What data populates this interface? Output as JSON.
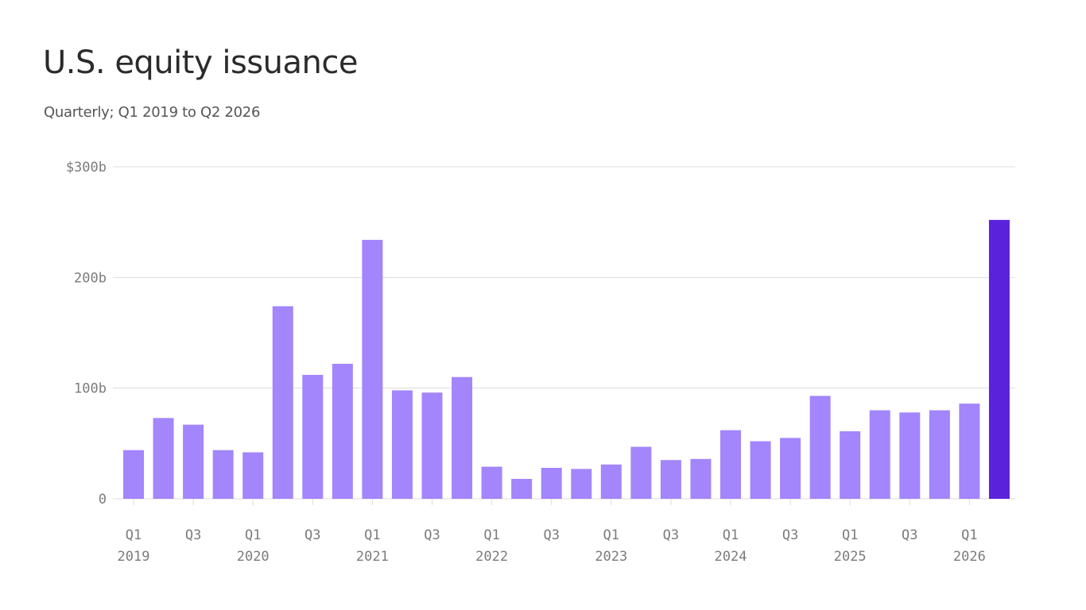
{
  "title": "U.S. equity issuance",
  "subtitle": "Quarterly; Q1 2019 to Q2 2026",
  "colors": {
    "bar": "#a385fc",
    "highlight": "#5a22db",
    "grid": "#dcdcdc",
    "axis_text": "#7b7b7b",
    "title": "#2b2b2b",
    "subtitle": "#555555"
  },
  "chart_data": {
    "type": "bar",
    "title": "U.S. equity issuance",
    "subtitle": "Quarterly; Q1 2019 to Q2 2026",
    "xlabel": "",
    "ylabel": "",
    "unit": "billions of dollars",
    "ylim": [
      0,
      300
    ],
    "y_ticks": [
      {
        "value": 0,
        "label": "0"
      },
      {
        "value": 100,
        "label": "100b"
      },
      {
        "value": 200,
        "label": "200b"
      },
      {
        "value": 300,
        "label": "$300b"
      }
    ],
    "grid": true,
    "categories": [
      "Q1 2019",
      "Q2 2019",
      "Q3 2019",
      "Q4 2019",
      "Q1 2020",
      "Q2 2020",
      "Q3 2020",
      "Q4 2020",
      "Q1 2021",
      "Q2 2021",
      "Q3 2021",
      "Q4 2021",
      "Q1 2022",
      "Q2 2022",
      "Q3 2022",
      "Q4 2022",
      "Q1 2023",
      "Q2 2023",
      "Q3 2023",
      "Q4 2023",
      "Q1 2024",
      "Q2 2024",
      "Q3 2024",
      "Q4 2024",
      "Q1 2025",
      "Q2 2025",
      "Q3 2025",
      "Q4 2025",
      "Q1 2026",
      "Q2 2026"
    ],
    "values": [
      44,
      73,
      67,
      44,
      42,
      174,
      112,
      122,
      234,
      98,
      96,
      110,
      29,
      18,
      28,
      27,
      31,
      47,
      35,
      36,
      62,
      52,
      55,
      93,
      61,
      80,
      78,
      80,
      86,
      252
    ],
    "highlight_index": 29,
    "x_tick_labels": [
      {
        "index": 0,
        "quarter": "Q1",
        "year": "2019"
      },
      {
        "index": 2,
        "quarter": "Q3",
        "year": ""
      },
      {
        "index": 4,
        "quarter": "Q1",
        "year": "2020"
      },
      {
        "index": 6,
        "quarter": "Q3",
        "year": ""
      },
      {
        "index": 8,
        "quarter": "Q1",
        "year": "2021"
      },
      {
        "index": 10,
        "quarter": "Q3",
        "year": ""
      },
      {
        "index": 12,
        "quarter": "Q1",
        "year": "2022"
      },
      {
        "index": 14,
        "quarter": "Q3",
        "year": ""
      },
      {
        "index": 16,
        "quarter": "Q1",
        "year": "2023"
      },
      {
        "index": 18,
        "quarter": "Q3",
        "year": ""
      },
      {
        "index": 20,
        "quarter": "Q1",
        "year": "2024"
      },
      {
        "index": 22,
        "quarter": "Q3",
        "year": ""
      },
      {
        "index": 24,
        "quarter": "Q1",
        "year": "2025"
      },
      {
        "index": 26,
        "quarter": "Q3",
        "year": ""
      },
      {
        "index": 28,
        "quarter": "Q1",
        "year": "2026"
      }
    ]
  }
}
